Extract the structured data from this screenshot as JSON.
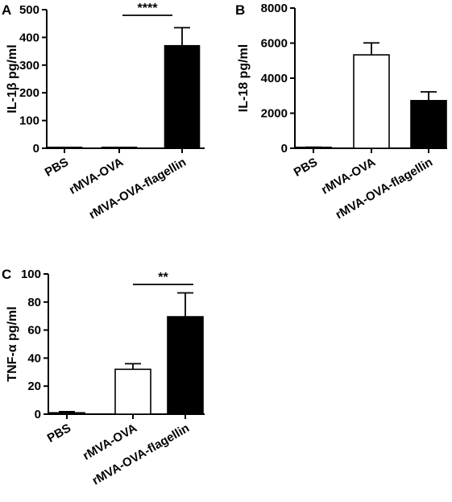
{
  "chart_data": [
    {
      "type": "bar",
      "panel": "A",
      "ylabel": "IL-1β pg/ml",
      "categories": [
        "PBS",
        "rMVA-OVA",
        "rMVA-OVA-flagellin"
      ],
      "values": [
        2,
        2,
        370
      ],
      "errors": [
        1,
        1,
        65
      ],
      "fills": [
        "#000000",
        "#000000",
        "#000000"
      ],
      "ylim": [
        0,
        500
      ],
      "yticks": [
        0,
        100,
        200,
        300,
        400,
        500
      ],
      "significance": {
        "from": 1,
        "to": 2,
        "label": "****"
      }
    },
    {
      "type": "bar",
      "panel": "B",
      "ylabel": "IL-18 pg/ml",
      "categories": [
        "PBS",
        "rMVA-OVA",
        "rMVA-OVA-flagellin"
      ],
      "values": [
        40,
        5330,
        2720
      ],
      "errors": [
        20,
        680,
        500
      ],
      "fills": [
        "#000000",
        "#ffffff",
        "#000000"
      ],
      "ylim": [
        0,
        8000
      ],
      "yticks": [
        0,
        2000,
        4000,
        6000,
        8000
      ]
    },
    {
      "type": "bar",
      "panel": "C",
      "ylabel": "TNF-α pg/ml",
      "categories": [
        "PBS",
        "rMVA-OVA",
        "rMVA-OVA-flagellin"
      ],
      "values": [
        1,
        32,
        69.5
      ],
      "errors": [
        0.8,
        4,
        17
      ],
      "fills": [
        "#000000",
        "#ffffff",
        "#000000"
      ],
      "ylim": [
        0,
        100
      ],
      "yticks": [
        0,
        20,
        40,
        60,
        80,
        100
      ],
      "significance": {
        "from": 1,
        "to": 2,
        "label": "**"
      }
    }
  ]
}
